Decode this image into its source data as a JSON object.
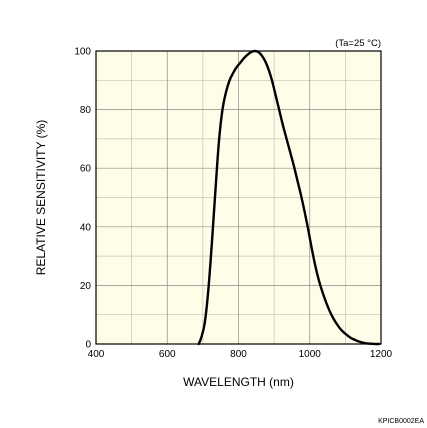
{
  "chart_data": {
    "type": "line",
    "title": "",
    "xlabel": "WAVELENGTH (nm)",
    "ylabel": "RELATIVE SENSITIVITY (%)",
    "xlim": [
      400,
      1200
    ],
    "ylim": [
      0,
      100
    ],
    "xticks": [
      400,
      600,
      800,
      1000,
      1200
    ],
    "yticks": [
      0,
      20,
      40,
      60,
      80,
      100
    ],
    "x_minor_step": 100,
    "y_minor_step": 10,
    "grid": true,
    "annotation": "(Ta=25 °C)",
    "series": [
      {
        "name": "",
        "x": [
          688,
          695,
          705,
          715,
          725,
          735,
          745,
          755,
          765,
          775,
          785,
          795,
          805,
          815,
          825,
          835,
          845,
          855,
          865,
          875,
          885,
          895,
          905,
          915,
          925,
          935,
          945,
          955,
          965,
          975,
          985,
          995,
          1005,
          1015,
          1025,
          1035,
          1045,
          1055,
          1065,
          1075,
          1085,
          1095,
          1105,
          1115,
          1125,
          1135,
          1145,
          1155,
          1165,
          1175,
          1185,
          1195
        ],
        "y": [
          0,
          2,
          7,
          18,
          34,
          52,
          69,
          80,
          86,
          90,
          92.5,
          94.5,
          96,
          97.5,
          98.7,
          99.6,
          100,
          99.7,
          98.5,
          96.5,
          93.5,
          89.5,
          84.5,
          79.5,
          74.5,
          70,
          65.5,
          61,
          56,
          51,
          45.5,
          39.5,
          33,
          27,
          22,
          18,
          14.5,
          11.5,
          9,
          7,
          5.3,
          4,
          3,
          2.1,
          1.5,
          1,
          0.6,
          0.3,
          0.15,
          0.05,
          0,
          0
        ]
      }
    ]
  },
  "figure_code": "KPICB0002EA"
}
